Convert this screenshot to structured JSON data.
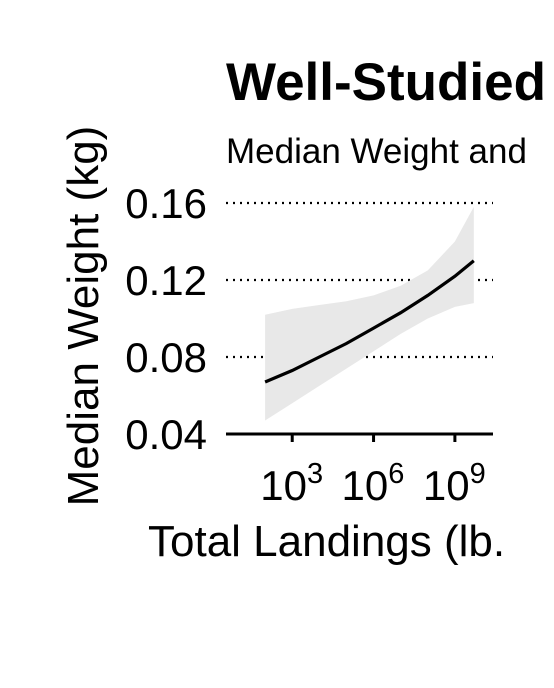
{
  "chart_data": {
    "type": "line",
    "title": "Well-Studied",
    "subtitle": "Median Weight and",
    "xlabel": "Total Landings (lb.",
    "ylabel": "Median Weight (kg)",
    "x_scale": "log10",
    "xlim": [
      10,
      10000000000.0
    ],
    "ylim": [
      0.04,
      0.16
    ],
    "x_ticks": [
      {
        "value": 1000,
        "base": "10",
        "exp": "3"
      },
      {
        "value": 1000000,
        "base": "10",
        "exp": "6"
      },
      {
        "value": 1000000000,
        "base": "10",
        "exp": "9"
      }
    ],
    "y_ticks": [
      {
        "value": 0.04,
        "label": "0.04"
      },
      {
        "value": 0.08,
        "label": "0.08"
      },
      {
        "value": 0.12,
        "label": "0.12"
      },
      {
        "value": 0.16,
        "label": "0.16"
      }
    ],
    "grid": "horizontal-dotted",
    "series": [
      {
        "x": [
          100,
          1000,
          10000,
          100000,
          1000000,
          10000000,
          100000000,
          1000000000,
          5000000000
        ],
        "y": [
          0.067,
          0.073,
          0.08,
          0.087,
          0.095,
          0.103,
          0.112,
          0.122,
          0.13
        ],
        "ci_lower": [
          0.047,
          0.056,
          0.065,
          0.074,
          0.083,
          0.092,
          0.1,
          0.106,
          0.108
        ],
        "ci_upper": [
          0.102,
          0.105,
          0.107,
          0.109,
          0.112,
          0.117,
          0.125,
          0.14,
          0.158
        ],
        "line_color": "#000000",
        "band_color": "#e8e8e8"
      }
    ]
  }
}
